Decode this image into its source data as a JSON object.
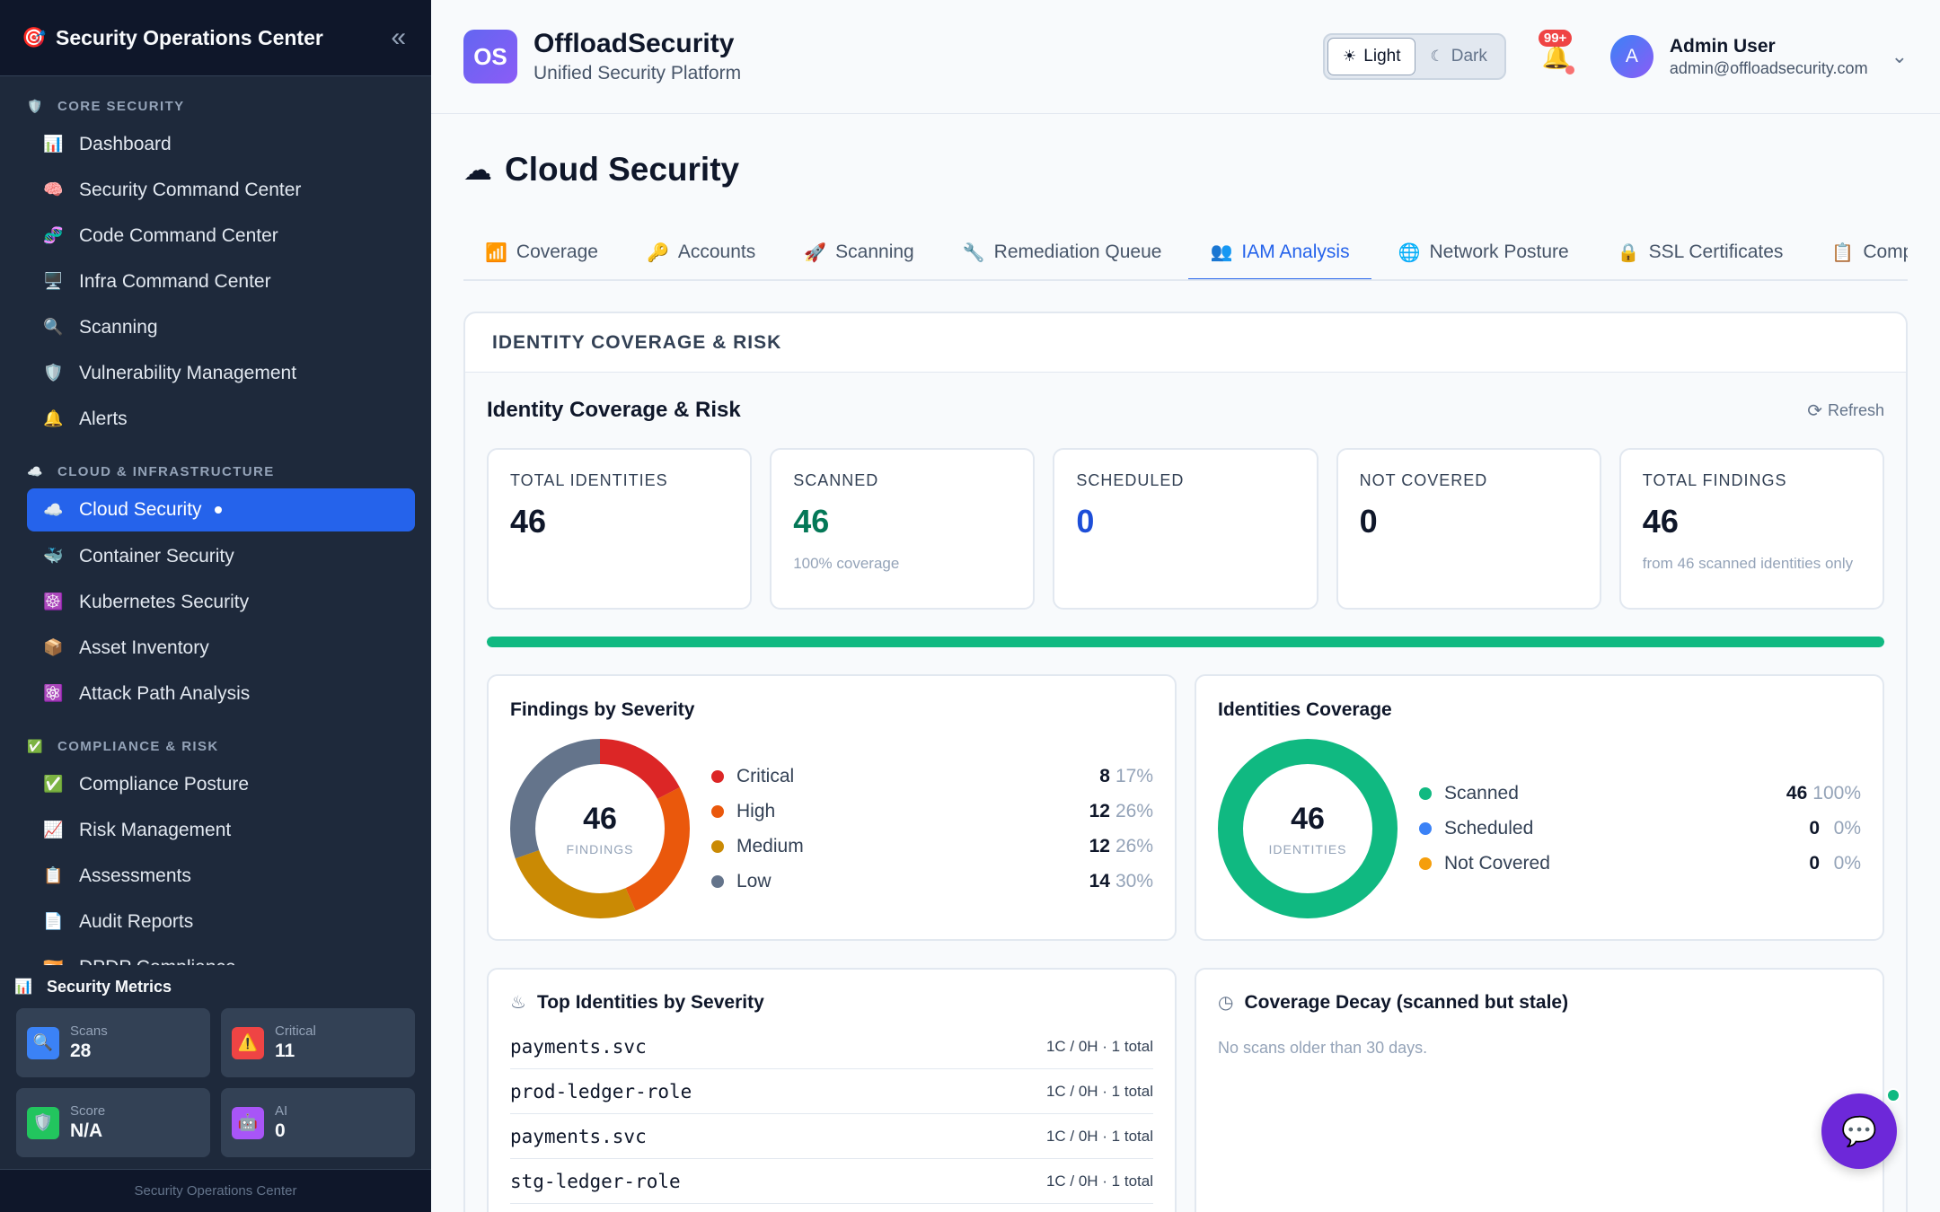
{
  "sidebar": {
    "title": "Security Operations Center",
    "logo_icon": "🎯",
    "collapse_icon": "«",
    "sections": [
      {
        "label": "CORE SECURITY",
        "icon": "🛡️",
        "items": [
          {
            "label": "Dashboard",
            "icon": "📊"
          },
          {
            "label": "Security Command Center",
            "icon": "🧠"
          },
          {
            "label": "Code Command Center",
            "icon": "🧬"
          },
          {
            "label": "Infra Command Center",
            "icon": "🖥️"
          },
          {
            "label": "Scanning",
            "icon": "🔍"
          },
          {
            "label": "Vulnerability Management",
            "icon": "🛡️"
          },
          {
            "label": "Alerts",
            "icon": "🔔"
          }
        ]
      },
      {
        "label": "CLOUD & INFRASTRUCTURE",
        "icon": "☁️",
        "items": [
          {
            "label": "Cloud Security",
            "icon": "☁️",
            "active": true
          },
          {
            "label": "Container Security",
            "icon": "🐳"
          },
          {
            "label": "Kubernetes Security",
            "icon": "☸️"
          },
          {
            "label": "Asset Inventory",
            "icon": "📦"
          },
          {
            "label": "Attack Path Analysis",
            "icon": "⚛️"
          }
        ]
      },
      {
        "label": "COMPLIANCE & RISK",
        "icon": "✅",
        "items": [
          {
            "label": "Compliance Posture",
            "icon": "✅"
          },
          {
            "label": "Risk Management",
            "icon": "📈"
          },
          {
            "label": "Assessments",
            "icon": "📋"
          },
          {
            "label": "Audit Reports",
            "icon": "📄"
          },
          {
            "label": "DPDP Compliance",
            "icon": "🇮🇳"
          }
        ]
      }
    ],
    "metrics": {
      "title": "Security Metrics",
      "icon": "📊",
      "cards": [
        {
          "label": "Scans",
          "value": "28",
          "icon": "🔍",
          "color": "#3b82f6"
        },
        {
          "label": "Critical",
          "value": "11",
          "icon": "⚠️",
          "color": "#ef4444"
        },
        {
          "label": "Score",
          "value": "N/A",
          "icon": "🛡️",
          "color": "#22c55e"
        },
        {
          "label": "AI",
          "value": "0",
          "icon": "🤖",
          "color": "#a855f7"
        }
      ]
    },
    "footer": "Security Operations Center"
  },
  "header": {
    "logo_text": "OS",
    "brand": "OffloadSecurity",
    "subtitle": "Unified Security Platform",
    "theme_light": "Light",
    "theme_dark": "Dark",
    "notif_badge": "99+",
    "user_initial": "A",
    "user_name": "Admin User",
    "user_email": "admin@offloadsecurity.com"
  },
  "page": {
    "title": "Cloud Security",
    "tabs": [
      {
        "label": "Coverage",
        "icon": "📶"
      },
      {
        "label": "Accounts",
        "icon": "🔑"
      },
      {
        "label": "Scanning",
        "icon": "🚀"
      },
      {
        "label": "Remediation Queue",
        "icon": "🔧"
      },
      {
        "label": "IAM Analysis",
        "icon": "👥",
        "active": true
      },
      {
        "label": "Network Posture",
        "icon": "🌐"
      },
      {
        "label": "SSL Certificates",
        "icon": "🔒"
      },
      {
        "label": "Compliance",
        "icon": "📋"
      }
    ]
  },
  "panel": {
    "header": "IDENTITY COVERAGE & RISK",
    "title": "Identity Coverage & Risk",
    "refresh": "Refresh",
    "stats": [
      {
        "label": "TOTAL IDENTITIES",
        "value": "46",
        "note": "",
        "color": "#0f172a"
      },
      {
        "label": "SCANNED",
        "value": "46",
        "note": "100% coverage",
        "color": "#047857"
      },
      {
        "label": "SCHEDULED",
        "value": "0",
        "note": "",
        "color": "#1d4ed8"
      },
      {
        "label": "NOT COVERED",
        "value": "0",
        "note": "",
        "color": "#0f172a"
      },
      {
        "label": "TOTAL FINDINGS",
        "value": "46",
        "note": "from 46 scanned identities only",
        "color": "#0f172a"
      }
    ],
    "coverage_fraction": 1.0,
    "top_identities_title": "Top Identities by Severity",
    "top_identities": [
      {
        "name": "payments.svc",
        "summary": "1C / 0H · 1 total"
      },
      {
        "name": "prod-ledger-role",
        "summary": "1C / 0H · 1 total"
      },
      {
        "name": "payments.svc",
        "summary": "1C / 0H · 1 total"
      },
      {
        "name": "stg-ledger-role",
        "summary": "1C / 0H · 1 total"
      }
    ],
    "decay_title": "Coverage Decay (scanned but stale)",
    "decay_note": "No scans older than 30 days."
  },
  "chart_data": [
    {
      "type": "pie",
      "title": "Findings by Severity",
      "center_value": "46",
      "center_label": "FINDINGS",
      "categories": [
        "Critical",
        "High",
        "Medium",
        "Low"
      ],
      "values": [
        8,
        12,
        12,
        14
      ],
      "percents": [
        "17%",
        "26%",
        "26%",
        "30%"
      ],
      "colors": [
        "#dc2626",
        "#ea580c",
        "#ca8a04",
        "#64748b"
      ]
    },
    {
      "type": "pie",
      "title": "Identities Coverage",
      "center_value": "46",
      "center_label": "IDENTITIES",
      "categories": [
        "Scanned",
        "Scheduled",
        "Not Covered"
      ],
      "values": [
        46,
        0,
        0
      ],
      "percents": [
        "100%",
        "0%",
        "0%"
      ],
      "colors": [
        "#10b981",
        "#3b82f6",
        "#f59e0b"
      ]
    }
  ]
}
